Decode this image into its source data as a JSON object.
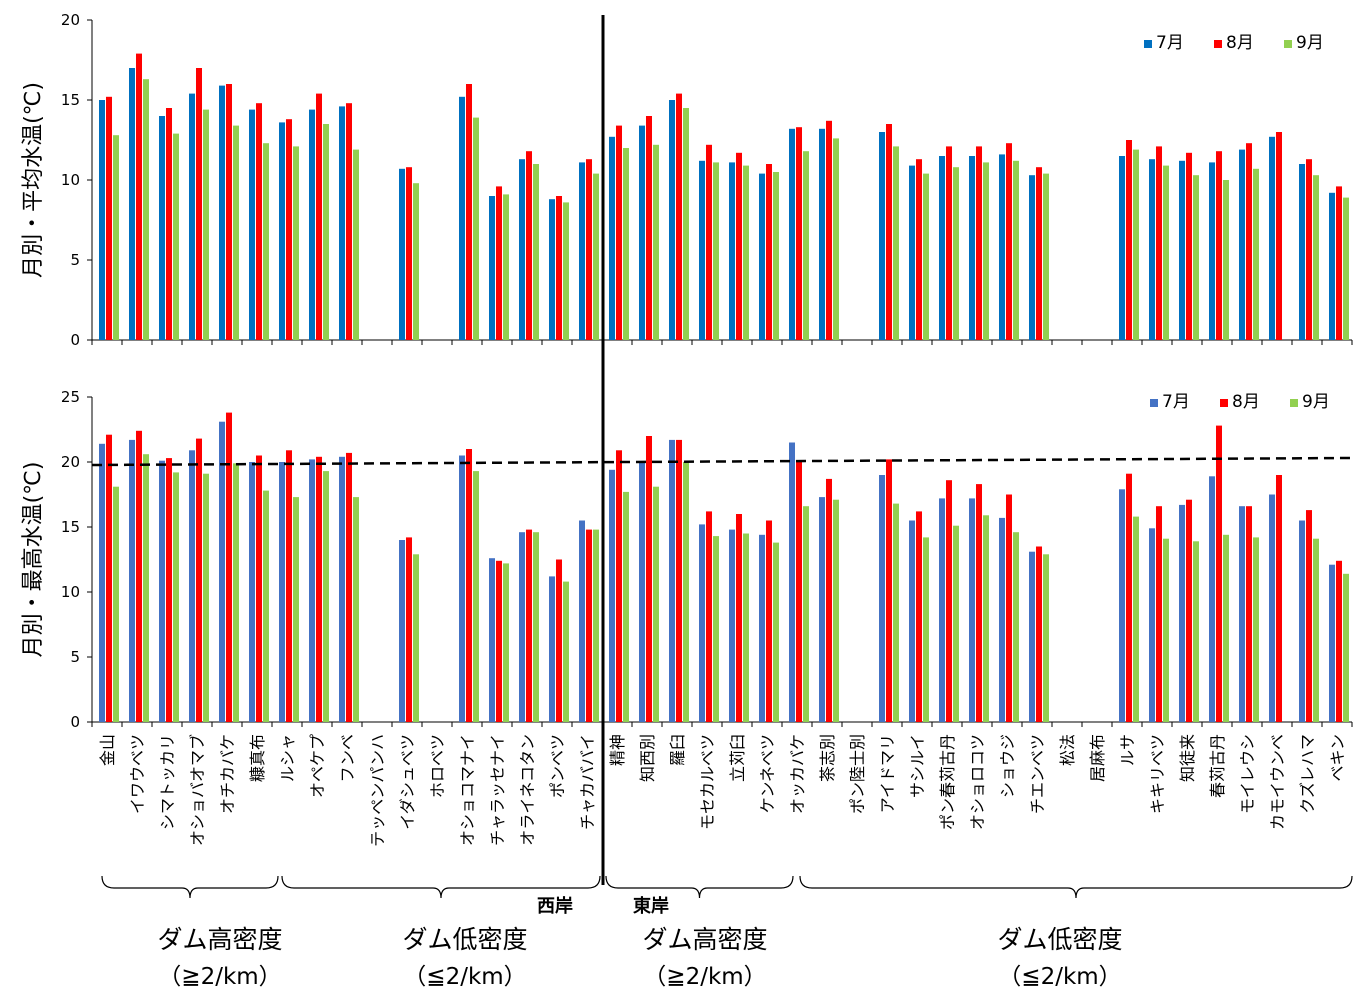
{
  "colors": {
    "jul_top": "#0070C0",
    "jul_bottom": "#4472C4",
    "aug": "#FF0000",
    "sep": "#92D050"
  },
  "chart_data": [
    {
      "type": "bar",
      "ylabel": "月別・平均水温(℃)",
      "ylim": [
        0,
        20
      ],
      "yticks": [
        "0",
        "5",
        "10",
        "15",
        "20"
      ],
      "legend_position": "top-right",
      "categories": [
        "金山",
        "イワウベツ",
        "シマトッカリ",
        "オショバオマブ",
        "オチカバケ",
        "糠真布",
        "ルシャ",
        "オペケプ",
        "フンベ",
        "テッペンパンハ",
        "イダシュベツ",
        "ホロベツ",
        "オショコマナイ",
        "チャラッセナイ",
        "オライネコタン",
        "ポンベツ",
        "チャカババイ",
        "精神",
        "知西別",
        "羅臼",
        "モセカルベツ",
        "立苅臼",
        "ケンネベツ",
        "オッカバケ",
        "茶志別",
        "ポン陸士別",
        "アイドマリ",
        "サシルイ",
        "ポン春苅古丹",
        "オショロコツ",
        "ショウジ",
        "チエンベツ",
        "松法",
        "居麻布",
        "ルサ",
        "キキリベツ",
        "知徒来",
        "春苅古丹",
        "モイレウシ",
        "カモイウンベ",
        "クズレハマ",
        "ベキン"
      ],
      "series": [
        {
          "name": "7月",
          "values": [
            15.0,
            17.0,
            14.0,
            15.4,
            15.9,
            14.4,
            13.6,
            14.4,
            14.6,
            null,
            10.7,
            null,
            15.2,
            9.0,
            11.3,
            8.8,
            11.1,
            12.7,
            13.4,
            15.0,
            11.2,
            11.1,
            10.4,
            13.2,
            13.2,
            null,
            13.0,
            10.9,
            11.5,
            11.5,
            11.6,
            10.3,
            null,
            null,
            11.5,
            11.3,
            11.2,
            11.1,
            11.9,
            12.7,
            11.0,
            9.2
          ]
        },
        {
          "name": "8月",
          "values": [
            15.2,
            17.9,
            14.5,
            17.0,
            16.0,
            14.8,
            13.8,
            15.4,
            14.8,
            null,
            10.8,
            null,
            16.0,
            9.6,
            11.8,
            9.0,
            11.3,
            13.4,
            14.0,
            15.4,
            12.2,
            11.7,
            11.0,
            13.3,
            13.7,
            null,
            13.5,
            11.3,
            12.1,
            12.1,
            12.3,
            10.8,
            null,
            null,
            12.5,
            12.1,
            11.7,
            11.8,
            12.3,
            13.0,
            11.3,
            9.6
          ]
        },
        {
          "name": "9月",
          "values": [
            12.8,
            16.3,
            12.9,
            14.4,
            13.4,
            12.3,
            12.1,
            13.5,
            11.9,
            null,
            9.8,
            null,
            13.9,
            9.1,
            11.0,
            8.6,
            10.4,
            12.0,
            12.2,
            14.5,
            11.1,
            10.9,
            10.5,
            11.8,
            12.6,
            null,
            12.1,
            10.4,
            10.8,
            11.1,
            11.2,
            10.4,
            null,
            null,
            11.9,
            10.9,
            10.3,
            10.0,
            10.7,
            null,
            10.3,
            8.9
          ]
        }
      ]
    },
    {
      "type": "bar",
      "ylabel": "月別・最高水温(℃)",
      "ylim": [
        0,
        25
      ],
      "yticks": [
        "0",
        "5",
        "10",
        "15",
        "20",
        "25"
      ],
      "legend_position": "top-right",
      "categories": [
        "金山",
        "イワウベツ",
        "シマトッカリ",
        "オショバオマブ",
        "オチカバケ",
        "糠真布",
        "ルシャ",
        "オペケプ",
        "フンベ",
        "テッペンパンハ",
        "イダシュベツ",
        "ホロベツ",
        "オショコマナイ",
        "チャラッセナイ",
        "オライネコタン",
        "ポンベツ",
        "チャカババイ",
        "精神",
        "知西別",
        "羅臼",
        "モセカルベツ",
        "立苅臼",
        "ケンネベツ",
        "オッカバケ",
        "茶志別",
        "ポン陸士別",
        "アイドマリ",
        "サシルイ",
        "ポン春苅古丹",
        "オショロコツ",
        "ショウジ",
        "チエンベツ",
        "松法",
        "居麻布",
        "ルサ",
        "キキリベツ",
        "知徒来",
        "春苅古丹",
        "モイレウシ",
        "カモイウンベ",
        "クズレハマ",
        "ベキン"
      ],
      "series": [
        {
          "name": "7月",
          "values": [
            21.4,
            21.7,
            20.1,
            20.9,
            23.1,
            20.0,
            20.0,
            20.2,
            20.4,
            null,
            14.0,
            null,
            20.5,
            12.6,
            14.6,
            11.2,
            15.5,
            19.4,
            20.0,
            21.7,
            15.2,
            14.8,
            14.4,
            21.5,
            17.3,
            null,
            19.0,
            15.5,
            17.2,
            17.2,
            15.7,
            13.1,
            null,
            null,
            17.9,
            14.9,
            16.7,
            18.9,
            16.6,
            17.5,
            15.5,
            12.1
          ]
        },
        {
          "name": "8月",
          "values": [
            22.1,
            22.4,
            20.3,
            21.8,
            23.8,
            20.5,
            20.9,
            20.4,
            20.7,
            null,
            14.2,
            null,
            21.0,
            12.4,
            14.8,
            12.5,
            14.8,
            20.9,
            22.0,
            21.7,
            16.2,
            16.0,
            15.5,
            20.0,
            18.7,
            null,
            20.2,
            16.2,
            18.6,
            18.3,
            17.5,
            13.5,
            null,
            null,
            19.1,
            16.6,
            17.1,
            22.8,
            16.6,
            19.0,
            16.3,
            12.4
          ]
        },
        {
          "name": "9月",
          "values": [
            18.1,
            20.6,
            19.2,
            19.1,
            19.9,
            17.8,
            17.3,
            19.3,
            17.3,
            null,
            12.9,
            null,
            19.3,
            12.2,
            14.6,
            10.8,
            14.8,
            17.7,
            18.1,
            20.0,
            14.3,
            14.5,
            13.8,
            16.6,
            17.1,
            null,
            16.8,
            14.2,
            15.1,
            15.9,
            14.6,
            12.9,
            null,
            null,
            15.8,
            14.1,
            13.9,
            14.4,
            14.2,
            null,
            14.1,
            11.4
          ]
        }
      ]
    }
  ],
  "annotations": {
    "west_label": "西岸",
    "east_label": "東岸",
    "groups": [
      {
        "title": "ダム高密度",
        "range": "（≧2/km）"
      },
      {
        "title": "ダム低密度",
        "range": "（≦2/km）"
      },
      {
        "title": "ダム高密度",
        "range": "（≧2/km）"
      },
      {
        "title": "ダム低密度",
        "range": "（≦2/km）"
      }
    ]
  }
}
